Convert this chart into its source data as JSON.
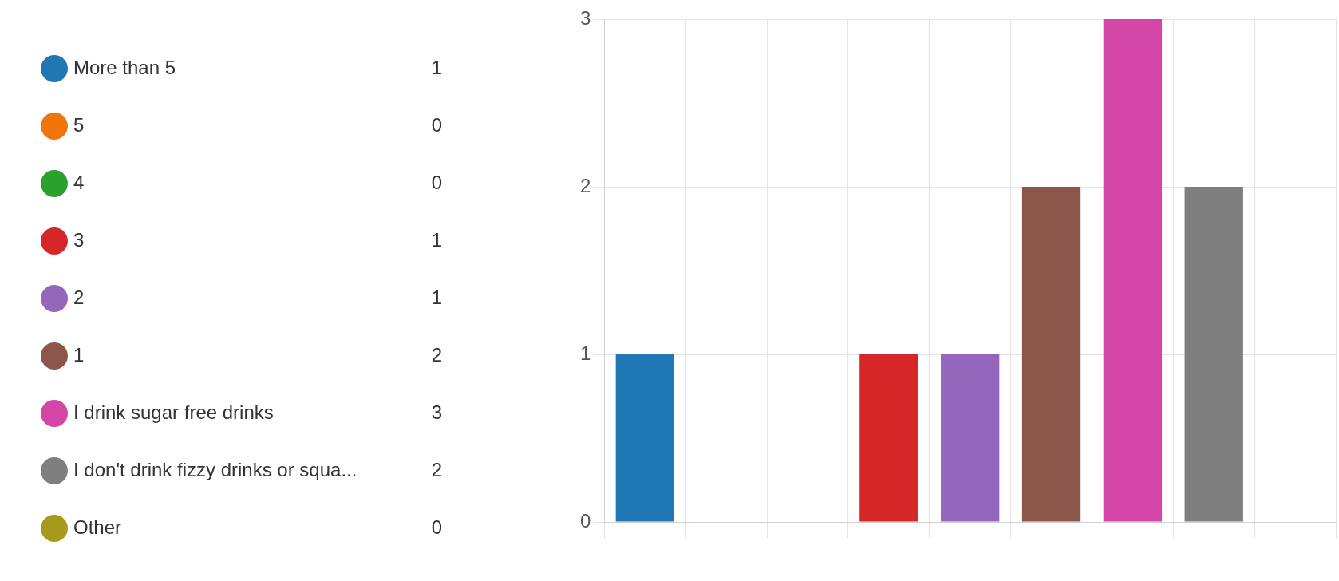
{
  "chart_data": {
    "type": "bar",
    "categories": [
      null,
      null,
      null,
      null,
      null,
      null,
      null,
      null,
      null
    ],
    "series": [
      {
        "name": "More than 5",
        "color": "#1f77b4",
        "values": [
          1,
          null,
          null,
          null,
          null,
          null,
          null,
          null,
          null
        ]
      },
      {
        "name": "5",
        "color": "#f0760b",
        "values": [
          null,
          0,
          null,
          null,
          null,
          null,
          null,
          null,
          null
        ]
      },
      {
        "name": "4",
        "color": "#2ca02c",
        "values": [
          null,
          null,
          0,
          null,
          null,
          null,
          null,
          null,
          null
        ]
      },
      {
        "name": "3",
        "color": "#d62728",
        "values": [
          null,
          null,
          null,
          1,
          null,
          null,
          null,
          null,
          null
        ]
      },
      {
        "name": "2",
        "color": "#9467bd",
        "values": [
          null,
          null,
          null,
          null,
          1,
          null,
          null,
          null,
          null
        ]
      },
      {
        "name": "1",
        "color": "#8c564b",
        "values": [
          null,
          null,
          null,
          null,
          null,
          2,
          null,
          null,
          null
        ]
      },
      {
        "name": "I drink sugar free drinks",
        "color": "#d346a8",
        "values": [
          null,
          null,
          null,
          null,
          null,
          null,
          3,
          null,
          null
        ]
      },
      {
        "name": "I don't drink fizzy drinks or squa...",
        "color": "#7f7f7f",
        "values": [
          null,
          null,
          null,
          null,
          null,
          null,
          null,
          2,
          null
        ]
      },
      {
        "name": "Other",
        "color": "#a69a1e",
        "values": [
          null,
          null,
          null,
          null,
          null,
          null,
          null,
          null,
          0
        ]
      }
    ],
    "annotations": [
      "1",
      "0",
      "0",
      "1",
      "1",
      "2",
      "3",
      "2",
      "0"
    ],
    "ylim": [
      0,
      3
    ],
    "yticks": [
      0,
      1,
      2,
      3
    ],
    "grid": true,
    "legend": "left",
    "tick_labels": "y"
  }
}
